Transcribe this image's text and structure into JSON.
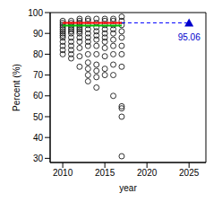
{
  "chart_data": {
    "type": "scatter",
    "x_label": "year",
    "y_label": "Percent (%)",
    "xlim": [
      2008.5,
      2027
    ],
    "xticks": [
      2010,
      2015,
      2020,
      2025
    ],
    "ylim": [
      28,
      100
    ],
    "yticks": [
      30,
      40,
      50,
      60,
      70,
      80,
      90,
      100
    ],
    "grid": false,
    "series": [
      {
        "type": "scatter",
        "color": "#000000",
        "marker": "circle_open",
        "x": [
          2010,
          2010,
          2010,
          2010,
          2010,
          2010,
          2010,
          2010,
          2010,
          2010,
          2010,
          2010,
          2010,
          2011,
          2011,
          2011,
          2011,
          2011,
          2011,
          2011,
          2011,
          2011,
          2011,
          2011,
          2011,
          2011,
          2012,
          2012,
          2012,
          2012,
          2012,
          2012,
          2012,
          2012,
          2012,
          2012,
          2012,
          2012,
          2012,
          2013,
          2013,
          2013,
          2013,
          2013,
          2013,
          2013,
          2013,
          2013,
          2013,
          2013,
          2013,
          2013,
          2014,
          2014,
          2014,
          2014,
          2014,
          2014,
          2014,
          2014,
          2014,
          2014,
          2014,
          2014,
          2015,
          2015,
          2015,
          2015,
          2015,
          2015,
          2015,
          2015,
          2015,
          2015,
          2015,
          2016,
          2016,
          2016,
          2016,
          2016,
          2016,
          2016,
          2016,
          2016,
          2016,
          2016,
          2017,
          2017,
          2017,
          2017,
          2017,
          2017,
          2017,
          2017,
          2017,
          2017,
          2017,
          2017
        ],
        "values": [
          80,
          82,
          84,
          86,
          88,
          89,
          90,
          91,
          92,
          93,
          94,
          95,
          96,
          78,
          80,
          82,
          84,
          86,
          88,
          90,
          91,
          92,
          93,
          94,
          95,
          96,
          74,
          79,
          83,
          86,
          88,
          90,
          91,
          92,
          93,
          94,
          95,
          96,
          97,
          67,
          70,
          73,
          76,
          80,
          84,
          86,
          88,
          90,
          92,
          94,
          96,
          97,
          64,
          69,
          72,
          75,
          80,
          84,
          87,
          89,
          91,
          93,
          95,
          97,
          70,
          73,
          79,
          83,
          86,
          88,
          90,
          92,
          94,
          96,
          97,
          60,
          70,
          75,
          80,
          84,
          87,
          90,
          92,
          94,
          96,
          97,
          31,
          50,
          54,
          55,
          74,
          80,
          84,
          88,
          91,
          94,
          96,
          98
        ]
      },
      {
        "type": "line",
        "color": "#ff0000",
        "line_style": "solid",
        "x": [
          2010,
          2017
        ],
        "values": [
          95,
          95
        ]
      },
      {
        "type": "line",
        "color": "#00c000",
        "line_style": "solid",
        "x": [
          2010,
          2017
        ],
        "values": [
          93.8,
          93.8
        ]
      },
      {
        "type": "line",
        "color": "#0000ff",
        "line_style": "dashed",
        "x": [
          2017,
          2025
        ],
        "values": [
          95.06,
          95.06
        ]
      },
      {
        "type": "scatter",
        "color": "#0000cc",
        "marker": "triangle",
        "data_labels": true,
        "x": [
          2025
        ],
        "values": [
          95.06
        ]
      }
    ]
  }
}
